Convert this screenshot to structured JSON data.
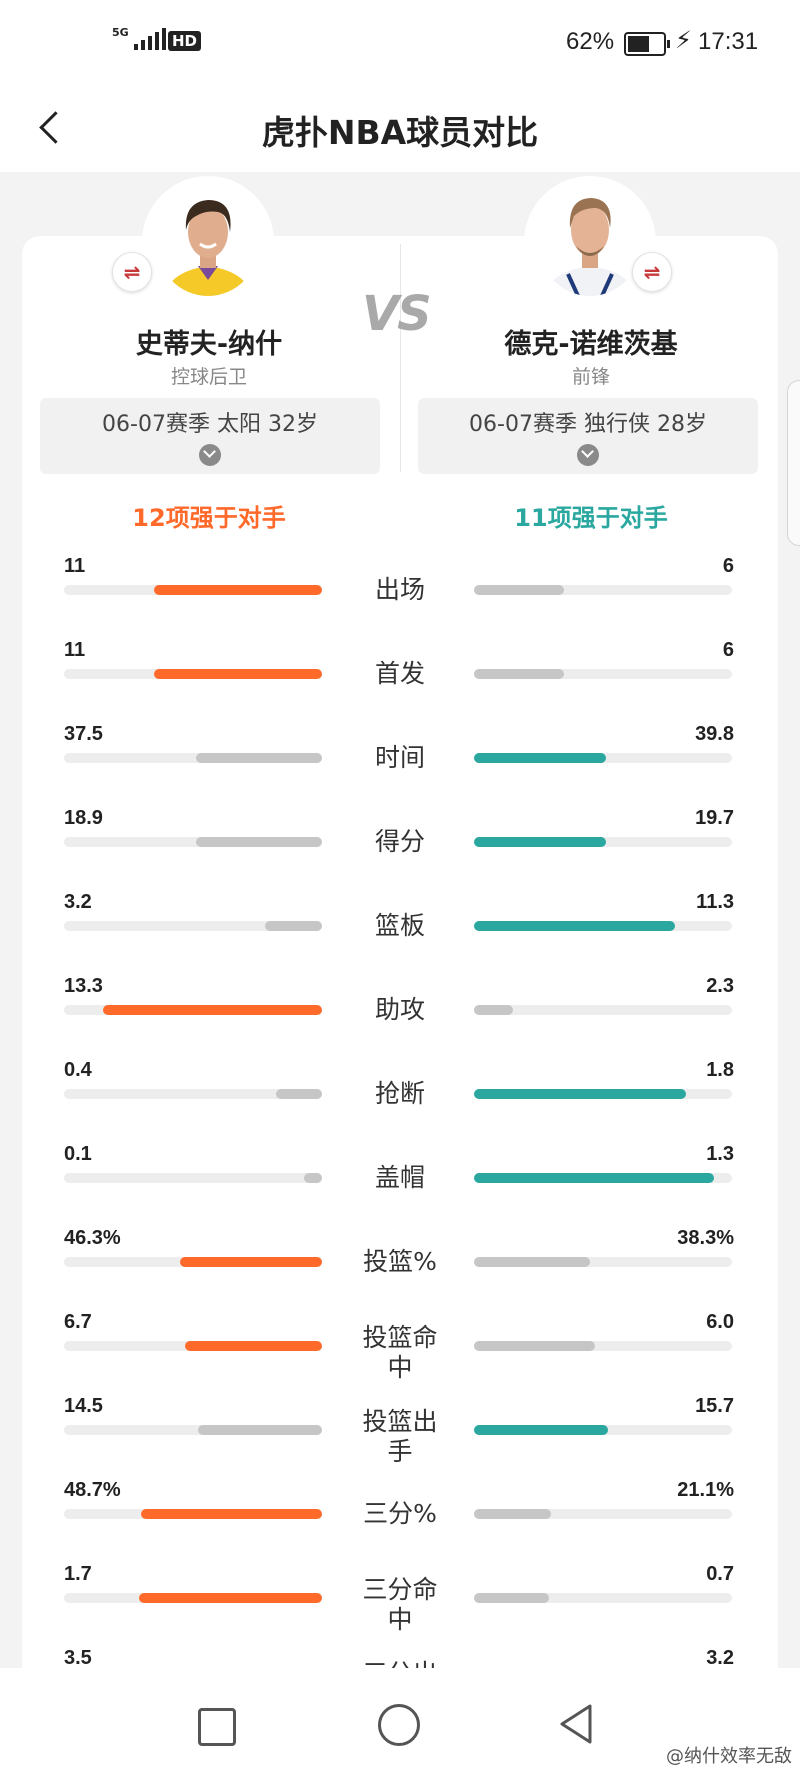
{
  "status": {
    "network": "5G",
    "hd": "HD",
    "battery": "62%",
    "battery_level": 0.62,
    "time": "17:31"
  },
  "header": {
    "title": "虎扑NBA球员对比"
  },
  "players": {
    "left": {
      "name": "史蒂夫-纳什",
      "position": "控球后卫",
      "season": "06-07赛季 太阳 32岁",
      "summary": "12项强于对手"
    },
    "right": {
      "name": "德克-诺维茨基",
      "position": "前锋",
      "season": "06-07赛季 独行侠 28岁",
      "summary": "11项强于对手"
    }
  },
  "vs": "VS",
  "colors": {
    "left_accent": "#ff6a2a",
    "right_accent": "#2aa8a0",
    "loser": "#c6c6c6"
  },
  "stats": [
    {
      "label": "出场",
      "left": "11",
      "right": "6",
      "left_frac": 0.65,
      "right_frac": 0.35,
      "winner": "left"
    },
    {
      "label": "首发",
      "left": "11",
      "right": "6",
      "left_frac": 0.65,
      "right_frac": 0.35,
      "winner": "left"
    },
    {
      "label": "时间",
      "left": "37.5",
      "right": "39.8",
      "left_frac": 0.49,
      "right_frac": 0.51,
      "winner": "right"
    },
    {
      "label": "得分",
      "left": "18.9",
      "right": "19.7",
      "left_frac": 0.49,
      "right_frac": 0.51,
      "winner": "right"
    },
    {
      "label": "篮板",
      "left": "3.2",
      "right": "11.3",
      "left_frac": 0.22,
      "right_frac": 0.78,
      "winner": "right"
    },
    {
      "label": "助攻",
      "left": "13.3",
      "right": "2.3",
      "left_frac": 0.85,
      "right_frac": 0.15,
      "winner": "left"
    },
    {
      "label": "抢断",
      "left": "0.4",
      "right": "1.8",
      "left_frac": 0.18,
      "right_frac": 0.82,
      "winner": "right"
    },
    {
      "label": "盖帽",
      "left": "0.1",
      "right": "1.3",
      "left_frac": 0.07,
      "right_frac": 0.93,
      "winner": "right"
    },
    {
      "label": "投篮%",
      "left": "46.3%",
      "right": "38.3%",
      "left_frac": 0.55,
      "right_frac": 0.45,
      "winner": "left"
    },
    {
      "label": "投篮命中",
      "left": "6.7",
      "right": "6.0",
      "left_frac": 0.53,
      "right_frac": 0.47,
      "winner": "left"
    },
    {
      "label": "投篮出手",
      "left": "14.5",
      "right": "15.7",
      "left_frac": 0.48,
      "right_frac": 0.52,
      "winner": "right"
    },
    {
      "label": "三分%",
      "left": "48.7%",
      "right": "21.1%",
      "left_frac": 0.7,
      "right_frac": 0.3,
      "winner": "left"
    },
    {
      "label": "三分命中",
      "left": "1.7",
      "right": "0.7",
      "left_frac": 0.71,
      "right_frac": 0.29,
      "winner": "left"
    },
    {
      "label": "三分出手",
      "left": "3.5",
      "right": "3.2",
      "left_frac": 0.52,
      "right_frac": 0.48,
      "winner": "left"
    }
  ],
  "watermark": "@纳什效率无敌",
  "icons": {
    "swap": "⇌",
    "chevron": "chevron-down-icon",
    "back": "back-arrow-icon"
  }
}
